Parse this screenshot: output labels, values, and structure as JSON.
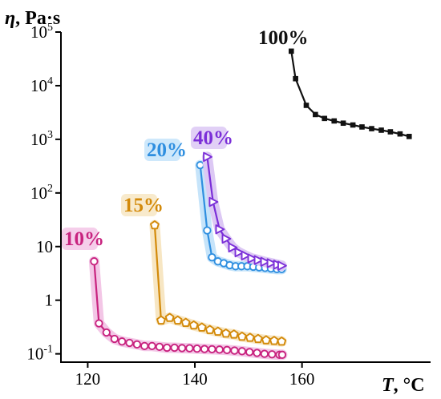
{
  "chart_data": {
    "type": "line",
    "ylabel": {
      "symbol": "η",
      "unit": ", Pa·s"
    },
    "xlabel": {
      "symbol": "T",
      "unit": ", °C"
    },
    "xlim": [
      115,
      184
    ],
    "ylim": [
      0.07,
      100000
    ],
    "y_scale": "log",
    "x_ticks": [
      120,
      140,
      160
    ],
    "x_tick_labels": [
      "120",
      "140",
      "160"
    ],
    "y_ticks": [
      {
        "value": 100000,
        "base": "10",
        "exp": "5",
        "text": ""
      },
      {
        "value": 10000,
        "base": "10",
        "exp": "4",
        "text": ""
      },
      {
        "value": 1000,
        "base": "10",
        "exp": "3",
        "text": ""
      },
      {
        "value": 100,
        "base": "10",
        "exp": "2",
        "text": ""
      },
      {
        "value": 10,
        "base": "",
        "exp": "",
        "text": "10"
      },
      {
        "value": 1,
        "base": "",
        "exp": "",
        "text": "1"
      },
      {
        "value": 0.1,
        "base": "10",
        "exp": "-1",
        "text": ""
      }
    ],
    "grid": false,
    "legend": "none",
    "series": [
      {
        "name": "10%",
        "color": "#c8237f",
        "halo": "#f3c6e6",
        "marker": "circle",
        "x": [
          121.2,
          122.1,
          123.5,
          125.0,
          126.4,
          127.8,
          129.2,
          130.6,
          132.0,
          133.4,
          134.8,
          136.2,
          137.6,
          139.0,
          140.4,
          141.8,
          143.2,
          144.6,
          146.0,
          147.4,
          148.8,
          150.2,
          151.6,
          153.0,
          154.4,
          155.8,
          156.3
        ],
        "y": [
          5.3,
          0.37,
          0.25,
          0.19,
          0.17,
          0.16,
          0.15,
          0.14,
          0.14,
          0.135,
          0.13,
          0.13,
          0.128,
          0.127,
          0.125,
          0.123,
          0.122,
          0.12,
          0.118,
          0.115,
          0.112,
          0.108,
          0.104,
          0.1,
          0.098,
          0.096,
          0.096
        ]
      },
      {
        "name": "15%",
        "color": "#d38a0a",
        "halo": "#f7e6c3",
        "marker": "pentagon",
        "x": [
          132.5,
          133.7,
          135.3,
          136.8,
          138.3,
          139.8,
          141.3,
          142.8,
          144.3,
          145.8,
          147.3,
          148.8,
          150.3,
          151.8,
          153.3,
          154.8,
          156.2
        ],
        "y": [
          25,
          0.42,
          0.47,
          0.42,
          0.38,
          0.34,
          0.31,
          0.28,
          0.26,
          0.24,
          0.23,
          0.21,
          0.2,
          0.19,
          0.18,
          0.175,
          0.17
        ]
      },
      {
        "name": "20%",
        "color": "#2f8fe0",
        "halo": "#c6e4fa",
        "marker": "circle",
        "x": [
          141.0,
          142.3,
          143.2,
          144.3,
          145.4,
          146.5,
          147.6,
          148.7,
          149.8,
          150.9,
          152.0,
          153.1,
          154.2,
          155.3,
          156.2
        ],
        "y": [
          330,
          20,
          6.3,
          5.3,
          4.9,
          4.5,
          4.3,
          4.3,
          4.3,
          4.2,
          4.1,
          4.0,
          3.9,
          3.8,
          3.8
        ]
      },
      {
        "name": "40%",
        "color": "#7b2fd8",
        "halo": "#dcc8f4",
        "marker": "triangle",
        "x": [
          142.3,
          143.4,
          144.6,
          145.8,
          147.0,
          148.2,
          149.4,
          150.6,
          151.8,
          153.0,
          154.2,
          155.4,
          156.2
        ],
        "y": [
          470,
          68,
          21,
          14,
          9.6,
          7.8,
          6.8,
          6.0,
          5.6,
          5.2,
          4.9,
          4.6,
          4.4
        ]
      },
      {
        "name": "100%",
        "color": "#111111",
        "halo": "",
        "marker": "square",
        "x": [
          158.0,
          158.8,
          160.8,
          162.5,
          164.2,
          166.0,
          167.7,
          169.5,
          171.2,
          173.0,
          174.8,
          176.5,
          178.3,
          180.0
        ],
        "y": [
          44000,
          13500,
          4300,
          2900,
          2450,
          2200,
          2000,
          1850,
          1700,
          1580,
          1480,
          1380,
          1260,
          1130
        ]
      }
    ]
  }
}
